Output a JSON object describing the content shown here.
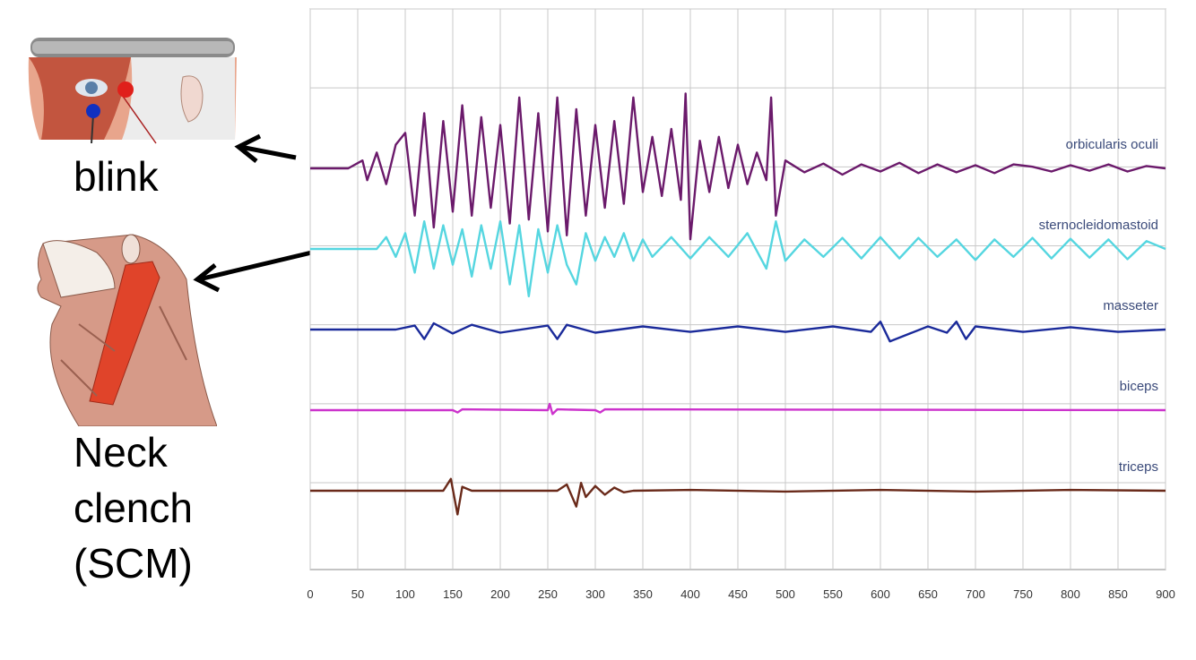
{
  "captions": {
    "blink": "blink",
    "neck": "Neck\nclench\n(SCM)"
  },
  "chart_data": {
    "type": "line",
    "title": "",
    "xlabel": "",
    "ylabel": "",
    "xlim": [
      0,
      900
    ],
    "x_ticks": [
      0,
      50,
      100,
      150,
      200,
      250,
      300,
      350,
      400,
      450,
      500,
      550,
      600,
      650,
      700,
      750,
      800,
      850,
      900
    ],
    "grid": true,
    "series": [
      {
        "name": "orbicularis oculi",
        "color": "#6b1a6b",
        "baseline_rank": 1,
        "x": [
          0,
          40,
          55,
          60,
          70,
          80,
          90,
          100,
          110,
          120,
          130,
          140,
          150,
          160,
          170,
          180,
          190,
          200,
          210,
          220,
          230,
          240,
          250,
          260,
          270,
          280,
          290,
          300,
          310,
          320,
          330,
          340,
          350,
          360,
          370,
          380,
          390,
          395,
          400,
          410,
          420,
          430,
          440,
          450,
          460,
          470,
          480,
          485,
          490,
          500,
          520,
          540,
          560,
          580,
          600,
          620,
          640,
          660,
          680,
          700,
          720,
          740,
          760,
          780,
          800,
          820,
          840,
          860,
          880,
          900
        ],
        "y": [
          0,
          0,
          0.1,
          -0.15,
          0.2,
          -0.2,
          0.3,
          0.45,
          -0.6,
          0.7,
          -0.75,
          0.6,
          -0.55,
          0.8,
          -0.6,
          0.65,
          -0.5,
          0.55,
          -0.7,
          0.9,
          -0.65,
          0.7,
          -0.8,
          0.9,
          -0.85,
          0.75,
          -0.6,
          0.55,
          -0.5,
          0.6,
          -0.45,
          0.9,
          -0.3,
          0.4,
          -0.35,
          0.5,
          -0.4,
          0.95,
          -0.9,
          0.35,
          -0.3,
          0.4,
          -0.25,
          0.3,
          -0.2,
          0.2,
          -0.15,
          0.9,
          -0.6,
          0.1,
          -0.05,
          0.06,
          -0.08,
          0.05,
          -0.04,
          0.07,
          -0.06,
          0.05,
          -0.05,
          0.04,
          -0.06,
          0.05,
          0.02,
          -0.04,
          0.04,
          -0.03,
          0.05,
          -0.04,
          0.03,
          0
        ]
      },
      {
        "name": "sternocleidomastoid",
        "color": "#55d6e0",
        "baseline_rank": 2,
        "x": [
          0,
          70,
          80,
          90,
          100,
          110,
          120,
          130,
          140,
          150,
          160,
          170,
          180,
          190,
          200,
          210,
          220,
          230,
          240,
          250,
          260,
          270,
          280,
          290,
          300,
          310,
          320,
          330,
          340,
          350,
          360,
          380,
          400,
          420,
          440,
          460,
          480,
          490,
          500,
          520,
          540,
          560,
          580,
          600,
          620,
          640,
          660,
          680,
          700,
          720,
          740,
          760,
          780,
          800,
          820,
          840,
          860,
          880,
          900
        ],
        "y": [
          0,
          0,
          0.15,
          -0.1,
          0.2,
          -0.3,
          0.35,
          -0.25,
          0.3,
          -0.2,
          0.25,
          -0.35,
          0.3,
          -0.25,
          0.35,
          -0.45,
          0.3,
          -0.6,
          0.25,
          -0.3,
          0.3,
          -0.2,
          -0.45,
          0.2,
          -0.15,
          0.15,
          -0.1,
          0.2,
          -0.15,
          0.12,
          -0.1,
          0.15,
          -0.12,
          0.15,
          -0.1,
          0.2,
          -0.25,
          0.35,
          -0.15,
          0.12,
          -0.1,
          0.14,
          -0.12,
          0.15,
          -0.12,
          0.14,
          -0.1,
          0.12,
          -0.14,
          0.12,
          -0.1,
          0.14,
          -0.12,
          0.13,
          -0.11,
          0.12,
          -0.13,
          0.1,
          0
        ]
      },
      {
        "name": "masseter",
        "color": "#1a2a9a",
        "baseline_rank": 3,
        "x": [
          0,
          90,
          110,
          120,
          130,
          150,
          170,
          200,
          250,
          260,
          270,
          300,
          350,
          400,
          450,
          500,
          550,
          590,
          600,
          610,
          650,
          670,
          680,
          690,
          700,
          750,
          800,
          850,
          900
        ],
        "y": [
          0,
          0,
          0.05,
          -0.12,
          0.08,
          -0.05,
          0.06,
          -0.04,
          0.05,
          -0.12,
          0.06,
          -0.04,
          0.04,
          -0.03,
          0.04,
          -0.03,
          0.04,
          -0.03,
          0.1,
          -0.15,
          0.04,
          -0.04,
          0.1,
          -0.12,
          0.04,
          -0.03,
          0.03,
          -0.03,
          0
        ]
      },
      {
        "name": "biceps",
        "color": "#cc33cc",
        "baseline_rank": 4,
        "x": [
          0,
          150,
          155,
          160,
          250,
          252,
          255,
          260,
          300,
          305,
          310,
          900
        ],
        "y": [
          0,
          0,
          -0.03,
          0.01,
          0,
          0.08,
          -0.05,
          0.01,
          0,
          -0.03,
          0.01,
          0
        ]
      },
      {
        "name": "triceps",
        "color": "#6a2a1a",
        "baseline_rank": 5,
        "x": [
          0,
          140,
          148,
          155,
          160,
          170,
          260,
          270,
          280,
          285,
          290,
          300,
          310,
          320,
          330,
          340,
          400,
          500,
          600,
          700,
          800,
          900
        ],
        "y": [
          0,
          0,
          0.15,
          -0.3,
          0.05,
          0,
          0,
          0.08,
          -0.2,
          0.1,
          -0.08,
          0.06,
          -0.05,
          0.04,
          -0.02,
          0,
          0.01,
          -0.01,
          0.01,
          -0.01,
          0.01,
          0
        ]
      }
    ]
  }
}
